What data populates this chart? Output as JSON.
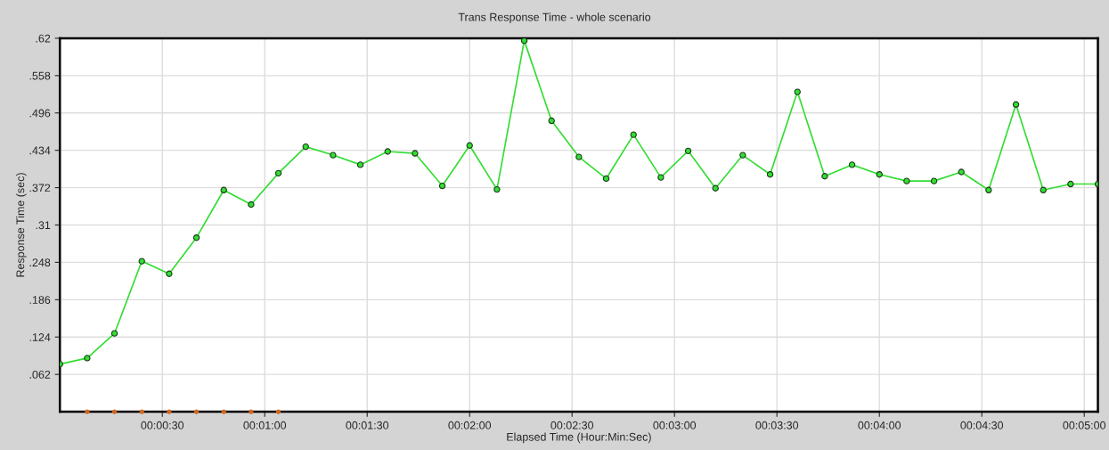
{
  "chart_data": {
    "type": "line",
    "title": "Trans Response Time - whole scenario",
    "xlabel": "Elapsed Time (Hour:Min:Sec)",
    "ylabel": "Response Time (sec)",
    "series": [
      {
        "color": "#33dd33",
        "marker": "circle",
        "x": [
          0,
          8,
          16,
          24,
          32,
          40,
          48,
          56,
          64,
          72,
          80,
          88,
          96,
          104,
          112,
          120,
          128,
          136,
          144,
          152,
          160,
          168,
          176,
          184,
          192,
          200,
          208,
          216,
          224,
          232,
          240,
          248,
          256,
          264,
          272,
          280,
          288,
          296,
          304
        ],
        "values": [
          0.079,
          0.089,
          0.13,
          0.25,
          0.229,
          0.289,
          0.368,
          0.344,
          0.396,
          0.44,
          0.426,
          0.41,
          0.432,
          0.429,
          0.375,
          0.442,
          0.369,
          0.616,
          0.483,
          0.423,
          0.387,
          0.46,
          0.389,
          0.433,
          0.371,
          0.426,
          0.394,
          0.531,
          0.391,
          0.41,
          0.394,
          0.383,
          0.383,
          0.398,
          0.368,
          0.51,
          0.368,
          0.378,
          0.378
        ]
      },
      {
        "type": "scatter",
        "color": "#d2691e",
        "marker": "circle",
        "x": [
          8,
          16,
          24,
          32,
          40,
          48,
          56,
          64
        ],
        "values": [
          0,
          0,
          0,
          0,
          0,
          0,
          0,
          0
        ]
      }
    ],
    "xlim": [
      0,
      304
    ],
    "xticks": [
      {
        "value": 30,
        "label": "00:00:30"
      },
      {
        "value": 60,
        "label": "00:01:00"
      },
      {
        "value": 90,
        "label": "00:01:30"
      },
      {
        "value": 120,
        "label": "00:02:00"
      },
      {
        "value": 150,
        "label": "00:02:30"
      },
      {
        "value": 180,
        "label": "00:03:00"
      },
      {
        "value": 210,
        "label": "00:03:30"
      },
      {
        "value": 240,
        "label": "00:04:00"
      },
      {
        "value": 270,
        "label": "00:04:30"
      },
      {
        "value": 300,
        "label": "00:05:00"
      }
    ],
    "ylim": [
      0,
      0.62
    ],
    "yticks": [
      {
        "value": 0.062,
        "label": ".062"
      },
      {
        "value": 0.124,
        "label": ".124"
      },
      {
        "value": 0.186,
        "label": ".186"
      },
      {
        "value": 0.248,
        "label": ".248"
      },
      {
        "value": 0.31,
        "label": ".31"
      },
      {
        "value": 0.372,
        "label": ".372"
      },
      {
        "value": 0.434,
        "label": ".434"
      },
      {
        "value": 0.496,
        "label": ".496"
      },
      {
        "value": 0.558,
        "label": ".558"
      },
      {
        "value": 0.62,
        "label": ".62"
      }
    ],
    "grid": true
  }
}
